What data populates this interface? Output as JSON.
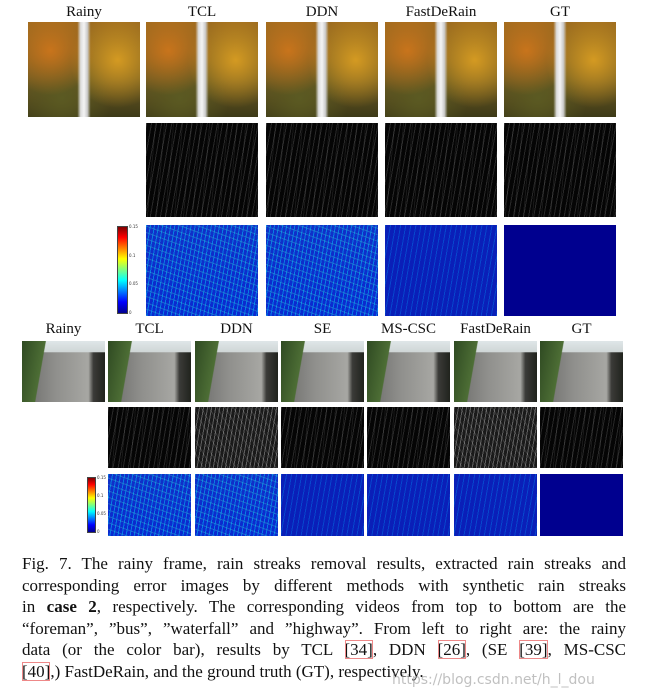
{
  "top_figure": {
    "headers": [
      "Rainy",
      "TCL",
      "DDN",
      "FastDeRain",
      "GT"
    ],
    "colorbar_ticks": [
      "0.15",
      "0.1",
      "0.05",
      "0"
    ]
  },
  "bottom_figure": {
    "headers": [
      "Rainy",
      "TCL",
      "DDN",
      "SE",
      "MS-CSC",
      "FastDeRain",
      "GT"
    ],
    "colorbar_ticks": [
      "0.15",
      "0.1",
      "0.05",
      "0"
    ]
  },
  "caption": {
    "lines": [
      [
        "Fig. 7.  The rainy frame, rain streaks removal results, extracted rain streaks and"
      ],
      [
        "corresponding error images by different methods with synthetic rain streaks"
      ],
      [
        "in ",
        "case 2",
        ", respectively. The corresponding videos from top to bottom are the"
      ],
      [
        "“foreman”, ”bus”, ”waterfall” and ”highway”. From left to right are: the rainy"
      ],
      [
        "data (or the color bar), results by TCL ",
        "[34]",
        ", DDN ",
        "[26]",
        ", (SE ",
        "[39]",
        ", MS-CSC"
      ],
      [
        "[40]",
        ",) FastDeRain, and the ground truth (GT), respectively."
      ]
    ]
  },
  "watermark": "https://blog.csdn.net/h_l_dou"
}
